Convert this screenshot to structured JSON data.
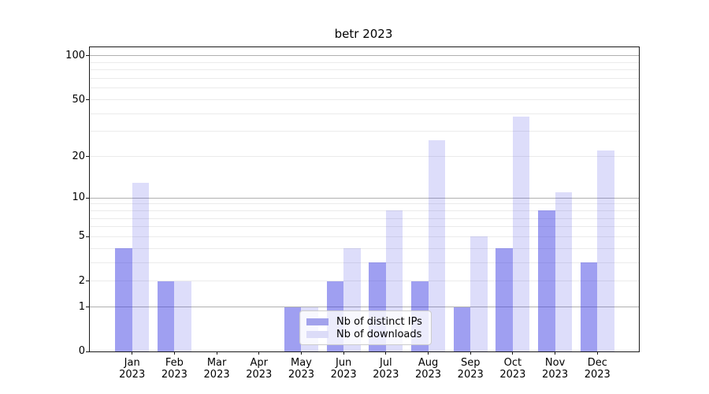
{
  "title": "betr 2023",
  "chart_data": {
    "type": "bar",
    "title": "betr 2023",
    "categories": [
      {
        "month": "Jan",
        "year": "2023"
      },
      {
        "month": "Feb",
        "year": "2023"
      },
      {
        "month": "Mar",
        "year": "2023"
      },
      {
        "month": "Apr",
        "year": "2023"
      },
      {
        "month": "May",
        "year": "2023"
      },
      {
        "month": "Jun",
        "year": "2023"
      },
      {
        "month": "Jul",
        "year": "2023"
      },
      {
        "month": "Aug",
        "year": "2023"
      },
      {
        "month": "Sep",
        "year": "2023"
      },
      {
        "month": "Oct",
        "year": "2023"
      },
      {
        "month": "Nov",
        "year": "2023"
      },
      {
        "month": "Dec",
        "year": "2023"
      }
    ],
    "series": [
      {
        "name": "Nb of distinct IPs",
        "color": "#a2a2ec",
        "values": [
          4,
          2,
          0,
          0,
          1,
          2,
          3,
          2,
          1,
          4,
          8,
          3
        ]
      },
      {
        "name": "Nb of downloads",
        "color": "#dcdcf8",
        "values": [
          13,
          2,
          0,
          0,
          1,
          4,
          8,
          26,
          5,
          38,
          11,
          22
        ]
      }
    ],
    "yscale": "log1p",
    "ytick_values": [
      100,
      50,
      20,
      10,
      5,
      2,
      1,
      0
    ],
    "ytick_labels": [
      "100",
      "50",
      "20",
      "10",
      "5",
      "2",
      "1",
      "0"
    ],
    "minor_grid_values": [
      2,
      3,
      4,
      5,
      6,
      7,
      8,
      9,
      20,
      30,
      40,
      50,
      60,
      70,
      80,
      90
    ],
    "major_grid_values": [
      1,
      10,
      100
    ],
    "ylim": [
      0,
      115
    ],
    "xlabel": "",
    "ylabel": "",
    "grid": "both",
    "legend_position": "lower center"
  }
}
